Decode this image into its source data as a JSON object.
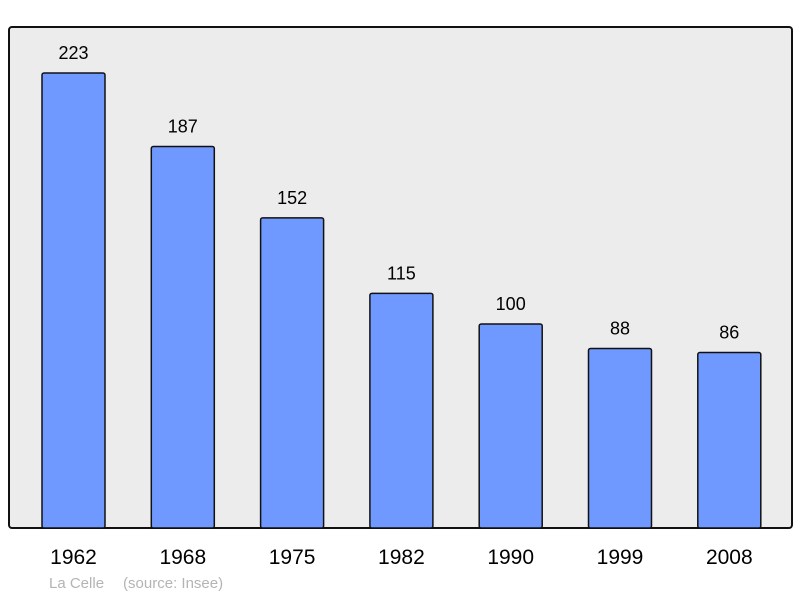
{
  "chart_data": {
    "type": "bar",
    "categories": [
      "1962",
      "1968",
      "1975",
      "1982",
      "1990",
      "1999",
      "2008"
    ],
    "values": [
      223,
      187,
      152,
      115,
      100,
      88,
      86
    ],
    "data_labels": [
      "223",
      "187",
      "152",
      "115",
      "100",
      "88",
      "86"
    ],
    "title": "",
    "xlabel": "",
    "ylabel": "",
    "ylim": [
      0,
      245
    ],
    "grid": false,
    "bar_color": "#7099ff",
    "plot_background": "#ececec"
  },
  "footer": {
    "place": "La Celle",
    "source": "(source: Insee)"
  }
}
